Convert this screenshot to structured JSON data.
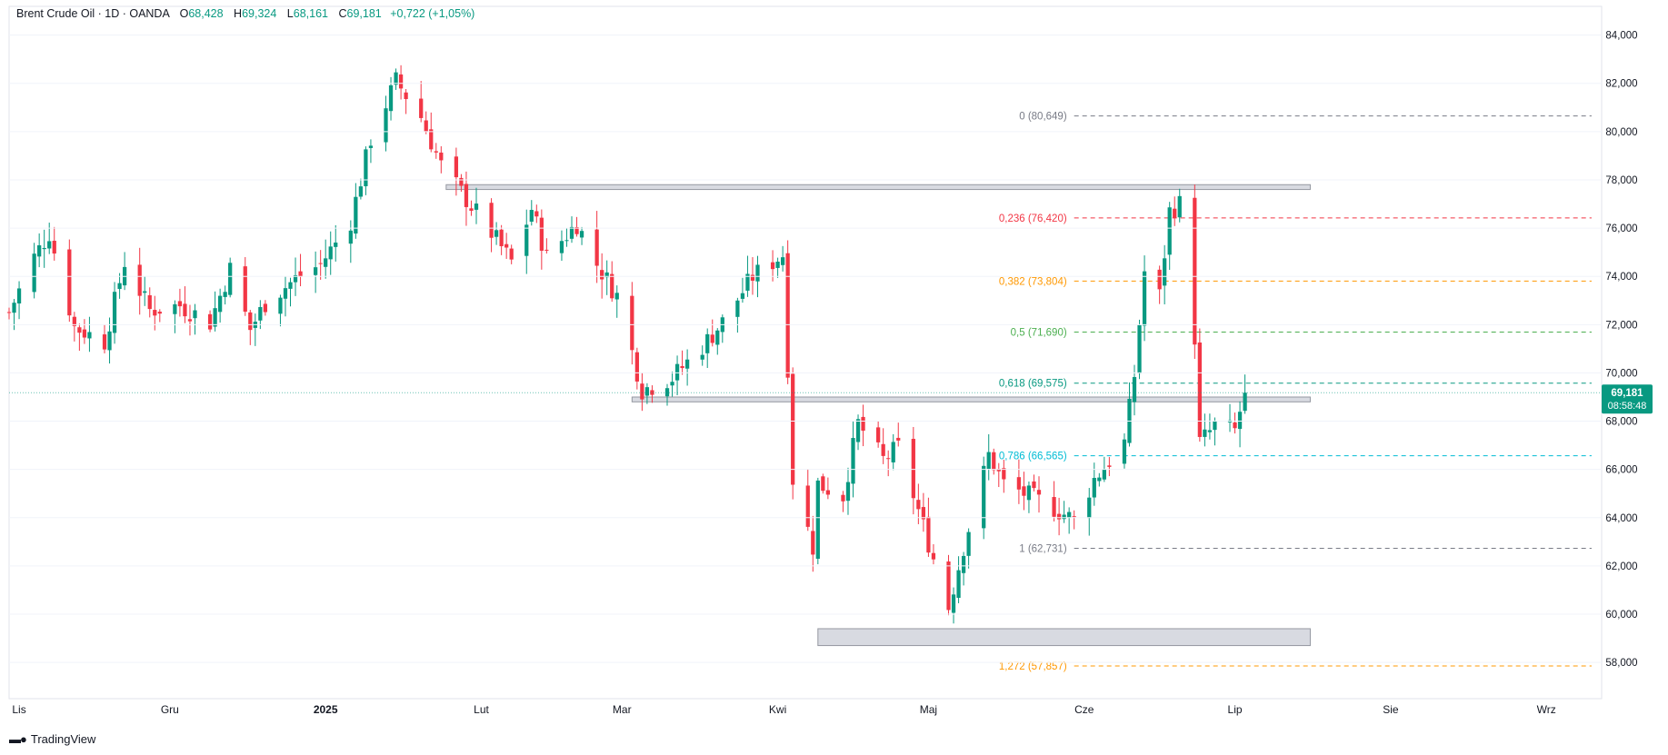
{
  "header": {
    "symbol": "Brent Crude Oil · 1D · OANDA",
    "open_label": "O",
    "open": "68,428",
    "high_label": "H",
    "high": "69,324",
    "low_label": "L",
    "low": "68,161",
    "close_label": "C",
    "close": "69,181",
    "change": "+0,722 (+1,05%)"
  },
  "price_badge": {
    "price": "69,181",
    "countdown": "08:58:48"
  },
  "branding": {
    "logo_icon": "tradingview-logo-icon",
    "name": "TradingView"
  },
  "colors": {
    "up": "#089981",
    "down": "#f23645",
    "grid": "#f0f3fa",
    "axis_text": "#131722"
  },
  "chart_data": {
    "type": "candlestick",
    "y_axis": {
      "min": 56.5,
      "max": 84.7,
      "ticks": [
        58,
        60,
        62,
        64,
        66,
        68,
        70,
        72,
        74,
        76,
        78,
        80,
        82,
        84
      ],
      "tick_labels": [
        "58,000",
        "60,000",
        "62,000",
        "64,000",
        "66,000",
        "68,000",
        "70,000",
        "72,000",
        "74,000",
        "76,000",
        "78,000",
        "80,000",
        "82,000",
        "84,000"
      ]
    },
    "x_axis": {
      "start": "2024-10-30",
      "end": "2025-09-12",
      "labels": [
        {
          "text": "Lis",
          "date": "2024-11-01"
        },
        {
          "text": "Gru",
          "date": "2024-12-01"
        },
        {
          "text": "2025",
          "date": "2025-01-01",
          "bold": true
        },
        {
          "text": "Lut",
          "date": "2025-02-01"
        },
        {
          "text": "Mar",
          "date": "2025-03-01"
        },
        {
          "text": "Kwi",
          "date": "2025-04-01"
        },
        {
          "text": "Maj",
          "date": "2025-05-01"
        },
        {
          "text": "Cze",
          "date": "2025-06-01"
        },
        {
          "text": "Lip",
          "date": "2025-07-01"
        },
        {
          "text": "Sie",
          "date": "2025-08-01"
        },
        {
          "text": "Wrz",
          "date": "2025-09-01"
        }
      ]
    },
    "key_points": [
      [
        "2024-10-30",
        72.5
      ],
      [
        "2024-11-04",
        74.8
      ],
      [
        "2024-11-07",
        75.8
      ],
      [
        "2024-11-12",
        71.9
      ],
      [
        "2024-11-18",
        71.3
      ],
      [
        "2024-11-22",
        74.6
      ],
      [
        "2024-11-27",
        72.6
      ],
      [
        "2024-12-03",
        72.8
      ],
      [
        "2024-12-09",
        72.1
      ],
      [
        "2024-12-13",
        74.3
      ],
      [
        "2024-12-17",
        71.8
      ],
      [
        "2024-12-20",
        72.9
      ],
      [
        "2024-12-26",
        73.9
      ],
      [
        "2024-12-31",
        74.5
      ],
      [
        "2025-01-06",
        76.3
      ],
      [
        "2025-01-10",
        79.7
      ],
      [
        "2025-01-15",
        82.1
      ],
      [
        "2025-01-20",
        80.6
      ],
      [
        "2025-01-24",
        78.6
      ],
      [
        "2025-01-29",
        77.2
      ],
      [
        "2025-02-03",
        75.8
      ],
      [
        "2025-02-07",
        74.6
      ],
      [
        "2025-02-11",
        76.8
      ],
      [
        "2025-02-14",
        74.8
      ],
      [
        "2025-02-20",
        76.2
      ],
      [
        "2025-02-24",
        74.5
      ],
      [
        "2025-02-28",
        73.2
      ],
      [
        "2025-03-05",
        69.3
      ],
      [
        "2025-03-11",
        69.8
      ],
      [
        "2025-03-17",
        71.1
      ],
      [
        "2025-03-21",
        72.1
      ],
      [
        "2025-03-27",
        74.0
      ],
      [
        "2025-04-02",
        74.9
      ],
      [
        "2025-04-04",
        65.6
      ],
      [
        "2025-04-08",
        62.8
      ],
      [
        "2025-04-09",
        65.4
      ],
      [
        "2025-04-14",
        64.9
      ],
      [
        "2025-04-17",
        67.9
      ],
      [
        "2025-04-22",
        66.4
      ],
      [
        "2025-04-25",
        66.9
      ],
      [
        "2025-04-29",
        64.3
      ],
      [
        "2025-05-05",
        60.3
      ],
      [
        "2025-05-08",
        62.8
      ],
      [
        "2025-05-13",
        66.6
      ],
      [
        "2025-05-16",
        65.4
      ],
      [
        "2025-05-21",
        64.9
      ],
      [
        "2025-05-26",
        64.4
      ],
      [
        "2025-05-30",
        63.9
      ],
      [
        "2025-06-03",
        65.6
      ],
      [
        "2025-06-09",
        67.1
      ],
      [
        "2025-06-11",
        69.9
      ],
      [
        "2025-06-13",
        74.2
      ],
      [
        "2025-06-16",
        73.2
      ],
      [
        "2025-06-18",
        76.7
      ],
      [
        "2025-06-20",
        77.0
      ],
      [
        "2025-06-23",
        71.5
      ],
      [
        "2025-06-24",
        67.1
      ],
      [
        "2025-06-27",
        67.8
      ],
      [
        "2025-07-01",
        67.6
      ],
      [
        "2025-07-03",
        69.2
      ]
    ],
    "fibonacci": [
      {
        "level": "0",
        "value": 80.649,
        "label": "0 (80,649)",
        "color": "#787b86"
      },
      {
        "level": "0.236",
        "value": 76.42,
        "label": "0,236 (76,420)",
        "color": "#f23645"
      },
      {
        "level": "0.382",
        "value": 73.804,
        "label": "0,382 (73,804)",
        "color": "#ff9800"
      },
      {
        "level": "0.5",
        "value": 71.69,
        "label": "0,5 (71,690)",
        "color": "#4caf50"
      },
      {
        "level": "0.618",
        "value": 69.575,
        "label": "0,618 (69,575)",
        "color": "#089981"
      },
      {
        "level": "0.786",
        "value": 66.565,
        "label": "0,786 (66,565)",
        "color": "#00bcd4"
      },
      {
        "level": "1",
        "value": 62.731,
        "label": "1 (62,731)",
        "color": "#787b86"
      },
      {
        "level": "1.272",
        "value": 57.857,
        "label": "1,272 (57,857)",
        "color": "#ff9800"
      }
    ],
    "fib_range": {
      "start": "2025-05-30",
      "end": "2025-09-10"
    },
    "zones": [
      {
        "name": "resistance-zone",
        "start": "2025-01-25",
        "end": "2025-07-16",
        "low": 77.6,
        "high": 77.8
      },
      {
        "name": "support-zone",
        "start": "2025-03-03",
        "end": "2025-07-16",
        "low": 68.8,
        "high": 69.0
      },
      {
        "name": "demand-zone",
        "start": "2025-04-09",
        "end": "2025-07-16",
        "low": 58.7,
        "high": 59.4
      }
    ]
  }
}
